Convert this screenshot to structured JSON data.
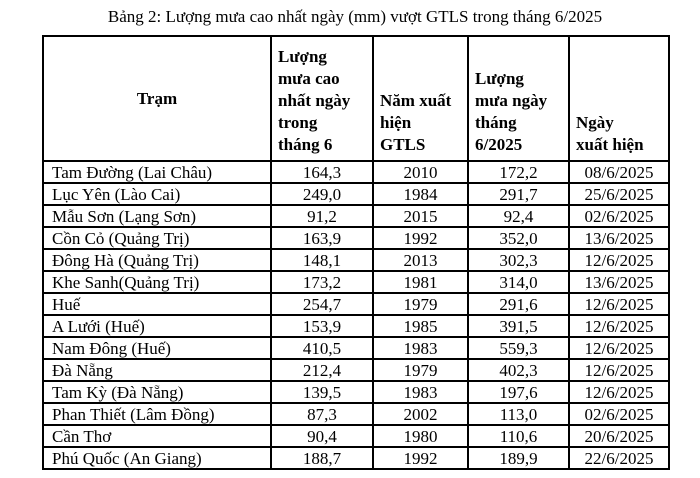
{
  "title": "Bảng 2: Lượng mưa cao nhất ngày (mm) vượt GTLS trong tháng 6/2025",
  "table": {
    "columns": [
      {
        "label": "Trạm"
      },
      {
        "label": "Lượng\nmưa cao\nnhất ngày\ntrong\ntháng 6"
      },
      {
        "label": "Năm xuất\nhiện\nGTLS"
      },
      {
        "label": "Lượng\nmưa ngày\ntháng\n6/2025"
      },
      {
        "label": "Ngày\nxuất hiện"
      }
    ],
    "rows": [
      {
        "station": "Tam Đường (Lai Châu)",
        "max_daily_june": "164,3",
        "record_year": "2010",
        "daily_june_2025": "172,2",
        "date": "08/6/2025"
      },
      {
        "station": "Lục Yên (Lào Cai)",
        "max_daily_june": "249,0",
        "record_year": "1984",
        "daily_june_2025": "291,7",
        "date": "25/6/2025"
      },
      {
        "station": "Mẫu Sơn (Lạng Sơn)",
        "max_daily_june": "91,2",
        "record_year": "2015",
        "daily_june_2025": "92,4",
        "date": "02/6/2025"
      },
      {
        "station": "Cồn Cỏ (Quảng Trị)",
        "max_daily_june": "163,9",
        "record_year": "1992",
        "daily_june_2025": "352,0",
        "date": "13/6/2025"
      },
      {
        "station": "Đông Hà (Quảng Trị)",
        "max_daily_june": "148,1",
        "record_year": "2013",
        "daily_june_2025": "302,3",
        "date": "12/6/2025"
      },
      {
        "station": "Khe Sanh(Quảng Trị)",
        "max_daily_june": "173,2",
        "record_year": "1981",
        "daily_june_2025": "314,0",
        "date": "13/6/2025"
      },
      {
        "station": "Huế",
        "max_daily_june": "254,7",
        "record_year": "1979",
        "daily_june_2025": "291,6",
        "date": "12/6/2025"
      },
      {
        "station": "A Lưới (Huế)",
        "max_daily_june": "153,9",
        "record_year": "1985",
        "daily_june_2025": "391,5",
        "date": "12/6/2025"
      },
      {
        "station": "Nam Đông (Huế)",
        "max_daily_june": "410,5",
        "record_year": "1983",
        "daily_june_2025": "559,3",
        "date": "12/6/2025"
      },
      {
        "station": "Đà Nẵng",
        "max_daily_june": "212,4",
        "record_year": "1979",
        "daily_june_2025": "402,3",
        "date": "12/6/2025"
      },
      {
        "station": "Tam Kỳ (Đà Nẵng)",
        "max_daily_june": "139,5",
        "record_year": "1983",
        "daily_june_2025": "197,6",
        "date": "12/6/2025"
      },
      {
        "station": "Phan Thiết (Lâm Đồng)",
        "max_daily_june": "87,3",
        "record_year": "2002",
        "daily_june_2025": "113,0",
        "date": "02/6/2025"
      },
      {
        "station": "Cần Thơ",
        "max_daily_june": "90,4",
        "record_year": "1980",
        "daily_june_2025": "110,6",
        "date": "20/6/2025"
      },
      {
        "station": "Phú Quốc (An Giang)",
        "max_daily_june": "188,7",
        "record_year": "1992",
        "daily_june_2025": "189,9",
        "date": "22/6/2025"
      }
    ]
  }
}
